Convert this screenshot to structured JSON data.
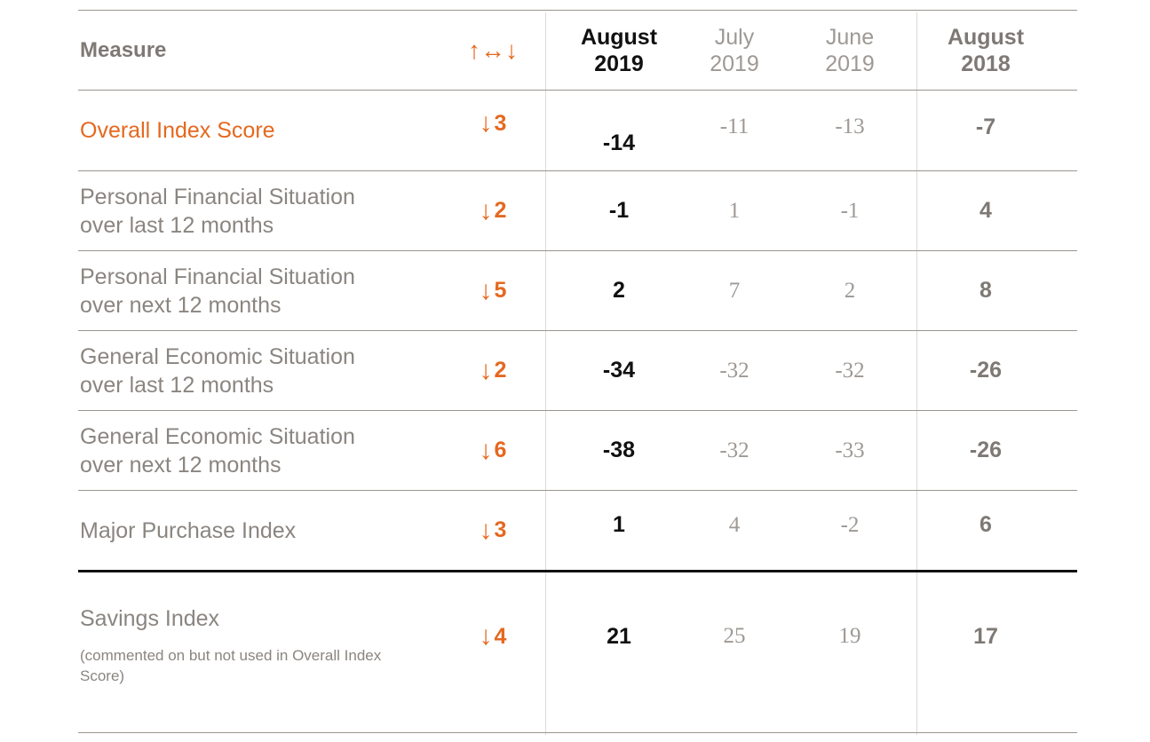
{
  "chart_data": {
    "type": "table",
    "columns": {
      "measure": "Measure",
      "change": "↑↔↓",
      "col1": [
        "August",
        "2019"
      ],
      "col2": [
        "July",
        "2019"
      ],
      "col3": [
        "June",
        "2019"
      ],
      "col4": [
        "August",
        "2018"
      ]
    },
    "rows": [
      {
        "measure": [
          "Overall Index Score"
        ],
        "note": "",
        "change_arrow": "↓",
        "change": "3",
        "values": [
          "-14",
          "-11",
          "-13",
          "-7"
        ]
      },
      {
        "measure": [
          "Personal Financial Situation",
          "over last 12 months"
        ],
        "note": "",
        "change_arrow": "↓",
        "change": "2",
        "values": [
          "-1",
          "1",
          "-1",
          "4"
        ]
      },
      {
        "measure": [
          "Personal Financial Situation",
          "over next 12 months"
        ],
        "note": "",
        "change_arrow": "↓",
        "change": "5",
        "values": [
          "2",
          "7",
          "2",
          "8"
        ]
      },
      {
        "measure": [
          "General Economic Situation",
          "over last 12 months"
        ],
        "note": "",
        "change_arrow": "↓",
        "change": "2",
        "values": [
          "-34",
          "-32",
          "-32",
          "-26"
        ]
      },
      {
        "measure": [
          "General Economic Situation",
          "over next 12 months"
        ],
        "note": "",
        "change_arrow": "↓",
        "change": "6",
        "values": [
          "-38",
          "-32",
          "-33",
          "-26"
        ]
      },
      {
        "measure": [
          "Major Purchase Index"
        ],
        "note": "",
        "change_arrow": "↓",
        "change": "3",
        "values": [
          "1",
          "4",
          "-2",
          "6"
        ]
      },
      {
        "measure": [
          "Savings Index"
        ],
        "note": "(commented on but not used in Overall Index Score)",
        "change_arrow": "↓",
        "change": "4",
        "values": [
          "21",
          "25",
          "19",
          "17"
        ]
      }
    ],
    "colors": {
      "accent": "#e5681f",
      "primary_text": "#111111",
      "muted_text": "#8a8580"
    }
  }
}
